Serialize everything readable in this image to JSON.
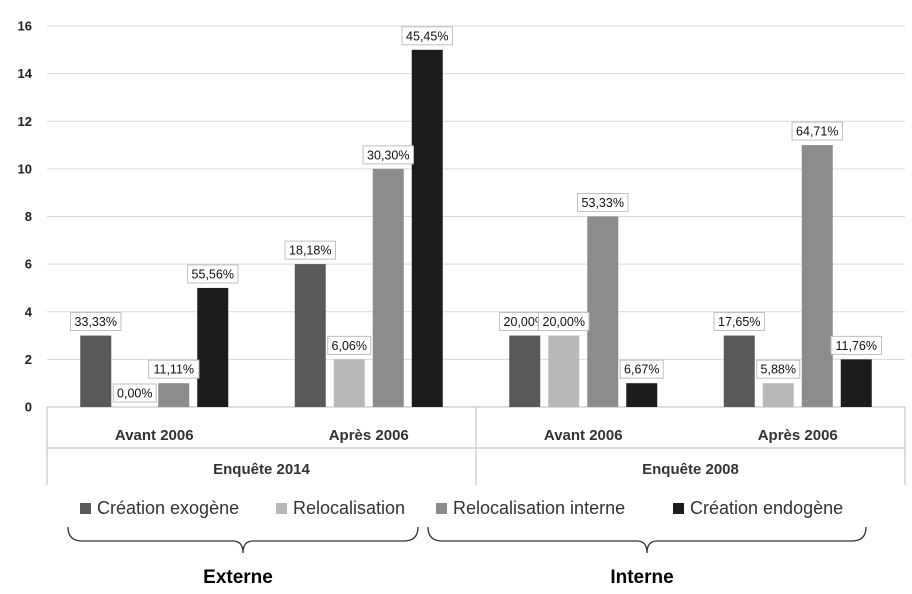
{
  "chart_data": {
    "type": "bar",
    "ylim": [
      0,
      16
    ],
    "yticks": [
      0,
      2,
      4,
      6,
      8,
      10,
      12,
      14,
      16
    ],
    "grid": true,
    "legend_position": "bottom",
    "groups": [
      {
        "name": "Enquête 2014",
        "categories": [
          "Avant 2006",
          "Après 2006"
        ]
      },
      {
        "name": "Enquête 2008",
        "categories": [
          "Avant 2006",
          "Après 2006"
        ]
      }
    ],
    "series": [
      {
        "name": "Création exogène",
        "color": "#595959",
        "values": [
          3,
          6,
          3,
          3
        ],
        "labels": [
          "33,33%",
          "18,18%",
          "20,00%",
          "17,65%"
        ]
      },
      {
        "name": "Relocalisation",
        "color": "#b8b8b8",
        "values": [
          0,
          2,
          3,
          1
        ],
        "labels": [
          "0,00%",
          "6,06%",
          "20,00%",
          "5,88%"
        ]
      },
      {
        "name": "Relocalisation interne",
        "color": "#8c8c8c",
        "values": [
          1,
          10,
          8,
          11
        ],
        "labels": [
          "11,11%",
          "30,30%",
          "53,33%",
          "64,71%"
        ]
      },
      {
        "name": "Création endogène",
        "color": "#1c1c1c",
        "values": [
          5,
          15,
          1,
          2
        ],
        "labels": [
          "55,56%",
          "45,45%",
          "6,67%",
          "11,76%"
        ]
      }
    ],
    "braces": [
      {
        "label": "Externe"
      },
      {
        "label": "Interne"
      }
    ]
  }
}
